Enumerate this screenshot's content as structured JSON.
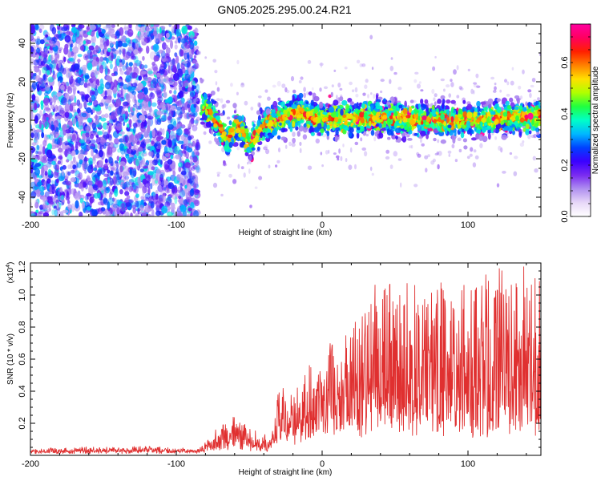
{
  "title": "GN05.2025.295.00.24.R21",
  "colorbar": {
    "label": "Normalized spectral amplitude",
    "ticks": [
      "0.0",
      "0.2",
      "0.4",
      "0.6"
    ],
    "range": [
      0,
      0.75
    ],
    "colors": [
      "#ffffff",
      "#e8d8f8",
      "#b090f0",
      "#7a2cf0",
      "#3b00ff",
      "#0040ff",
      "#00b8ff",
      "#00ffc8",
      "#20ff40",
      "#b0ff00",
      "#ffe000",
      "#ff8000",
      "#ff2000",
      "#ff0060",
      "#ff00a0"
    ]
  },
  "chart_data": [
    {
      "type": "heatmap",
      "xlabel": "Height of straight line (km)",
      "ylabel": "Frequency (Hz)",
      "xlim": [
        -200,
        150
      ],
      "ylim": [
        -50,
        50
      ],
      "xticks": [
        "-200",
        "-100",
        "0",
        "100"
      ],
      "yticks": [
        "40",
        "20",
        "0",
        "-20",
        "-40"
      ],
      "description_values": {
        "noise_region_x": [
          -200,
          -85
        ],
        "signal_center_track": [
          {
            "x": -85,
            "y": 10
          },
          {
            "x": -75,
            "y": 2
          },
          {
            "x": -65,
            "y": -10
          },
          {
            "x": -58,
            "y": -2
          },
          {
            "x": -50,
            "y": -12
          },
          {
            "x": -40,
            "y": -3
          },
          {
            "x": -25,
            "y": 2
          },
          {
            "x": -15,
            "y": 4
          },
          {
            "x": 0,
            "y": 0
          },
          {
            "x": 20,
            "y": 1
          },
          {
            "x": 50,
            "y": 1
          },
          {
            "x": 100,
            "y": 0
          },
          {
            "x": 150,
            "y": 2
          }
        ],
        "signal_half_width_hz": 4
      }
    },
    {
      "type": "line",
      "xlabel": "Height of straight line (km)",
      "ylabel": "SNR (10 * v/v)",
      "multiplier": "(x10",
      "multiplier_exp": "4",
      "xlim": [
        -200,
        150
      ],
      "ylim": [
        0,
        1.2
      ],
      "xticks": [
        "-200",
        "-100",
        "0",
        "100"
      ],
      "yticks": [
        "1.2",
        "1.0",
        "0.8",
        "0.6",
        "0.4",
        "0.2"
      ],
      "series_color": "#e03030",
      "envelope": [
        {
          "x": -200,
          "base": 0.02,
          "peak": 0.04
        },
        {
          "x": -120,
          "base": 0.02,
          "peak": 0.06
        },
        {
          "x": -85,
          "base": 0.02,
          "peak": 0.04
        },
        {
          "x": -75,
          "base": 0.05,
          "peak": 0.15
        },
        {
          "x": -60,
          "base": 0.07,
          "peak": 0.26
        },
        {
          "x": -55,
          "base": 0.05,
          "peak": 0.2
        },
        {
          "x": -35,
          "base": 0.04,
          "peak": 0.1
        },
        {
          "x": -30,
          "base": 0.12,
          "peak": 0.4
        },
        {
          "x": -15,
          "base": 0.14,
          "peak": 0.5
        },
        {
          "x": 0,
          "base": 0.18,
          "peak": 0.6
        },
        {
          "x": 20,
          "base": 0.2,
          "peak": 0.85
        },
        {
          "x": 35,
          "base": 0.24,
          "peak": 1.1
        },
        {
          "x": 60,
          "base": 0.22,
          "peak": 1.05
        },
        {
          "x": 100,
          "base": 0.2,
          "peak": 1.1
        },
        {
          "x": 150,
          "base": 0.2,
          "peak": 1.18
        }
      ]
    }
  ]
}
